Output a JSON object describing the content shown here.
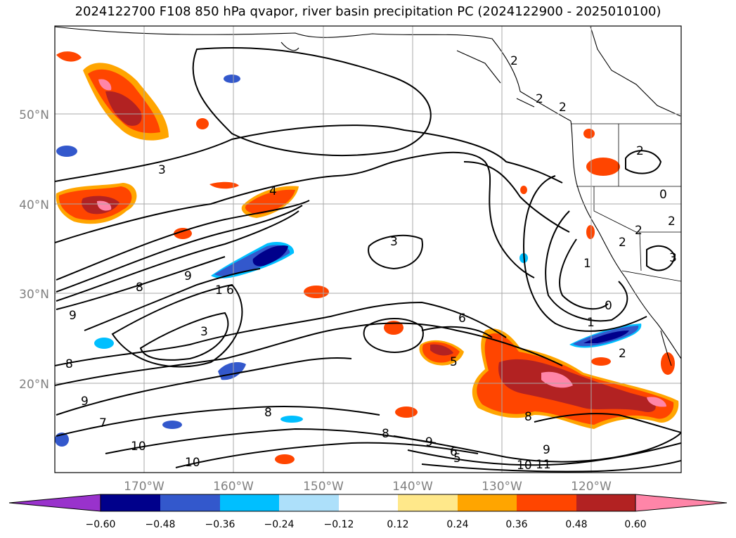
{
  "title": "2024122700 F108 850 hPa qvapor, river basin precipitation PC (2024122900 - 2025010100)",
  "map": {
    "lon_range": [
      -180,
      -110
    ],
    "lat_range": [
      10,
      60
    ],
    "lat_labels": [
      "50°N",
      "40°N",
      "30°N",
      "20°N"
    ],
    "lon_labels": [
      "170°W",
      "160°W",
      "150°W",
      "140°W",
      "130°W",
      "120°W"
    ],
    "gridlines": true,
    "contour_labels": [
      "2",
      "2",
      "2",
      "3",
      "4",
      "9",
      "8",
      "6",
      "1",
      "3",
      "9",
      "8",
      "9",
      "7",
      "8",
      "10",
      "10",
      "3",
      "5",
      "6",
      "8",
      "9",
      "6",
      "10",
      "11",
      "9",
      "8",
      "5",
      "1",
      "2",
      "0",
      "1",
      "2",
      "2",
      "2",
      "0",
      "2",
      "3"
    ]
  },
  "colorbar": {
    "ticks": [
      "−0.60",
      "−0.48",
      "−0.36",
      "−0.24",
      "−0.12",
      "0.12",
      "0.24",
      "0.36",
      "0.48",
      "0.60"
    ],
    "colors": [
      "#9932CC",
      "#00008B",
      "#3358CC",
      "#00BFFF",
      "#ADE0FA",
      "#FFFFFF",
      "#FFE88A",
      "#FFA500",
      "#FF4500",
      "#B22222",
      "#FF85A8",
      "#FF85A8"
    ],
    "extend": "both"
  }
}
